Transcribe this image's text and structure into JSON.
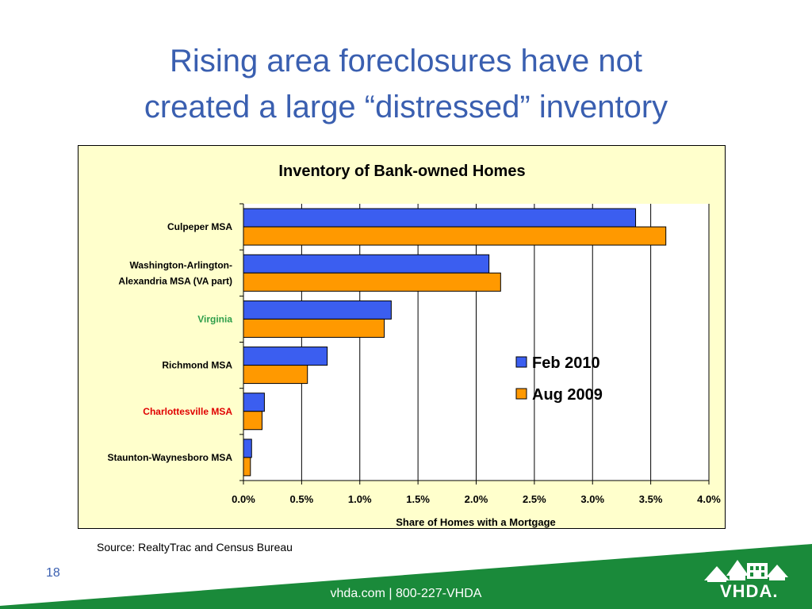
{
  "slide": {
    "title_line1": "Rising area foreclosures have not",
    "title_line2": "created a large “distressed” inventory",
    "source": "Source:  RealtyTrac and Census Bureau",
    "page_number": "18",
    "footer_contact": "vhda.com | 800-227-VHDA",
    "logo_text": "VHDA."
  },
  "colors": {
    "title": "#3a5fb0",
    "chart_background": "#ffffcc",
    "series_feb_2010": "#3b5ef0",
    "series_aug_2009": "#ff9900",
    "footer_green": "#1a8a3a",
    "label_virginia": "#2e9e4a",
    "label_charlottesville": "#e00000"
  },
  "chart_data": {
    "type": "bar",
    "orientation": "horizontal",
    "title": "Inventory of Bank-owned Homes",
    "xlabel": "Share of Homes with a Mortgage",
    "ylabel": "",
    "xlim": [
      0,
      4.0
    ],
    "x_ticks": [
      "0.0%",
      "0.5%",
      "1.0%",
      "1.5%",
      "2.0%",
      "2.5%",
      "3.0%",
      "3.5%",
      "4.0%"
    ],
    "grid": "vertical",
    "legend_position": "right",
    "categories": [
      {
        "label_lines": [
          "Culpeper MSA"
        ],
        "color": "#000000"
      },
      {
        "label_lines": [
          "Washington-Arlington-",
          "Alexandria MSA (VA part)"
        ],
        "color": "#000000"
      },
      {
        "label_lines": [
          "Virginia"
        ],
        "color": "#2e9e4a"
      },
      {
        "label_lines": [
          "Richmond MSA"
        ],
        "color": "#000000"
      },
      {
        "label_lines": [
          "Charlottesville MSA"
        ],
        "color": "#e00000"
      },
      {
        "label_lines": [
          "Staunton-Waynesboro MSA"
        ],
        "color": "#000000"
      }
    ],
    "series": [
      {
        "name": "Feb 2010",
        "color": "#3b5ef0",
        "values": [
          3.37,
          2.11,
          1.27,
          0.72,
          0.18,
          0.07
        ]
      },
      {
        "name": "Aug 2009",
        "color": "#ff9900",
        "values": [
          3.63,
          2.21,
          1.21,
          0.55,
          0.16,
          0.06
        ]
      }
    ]
  }
}
